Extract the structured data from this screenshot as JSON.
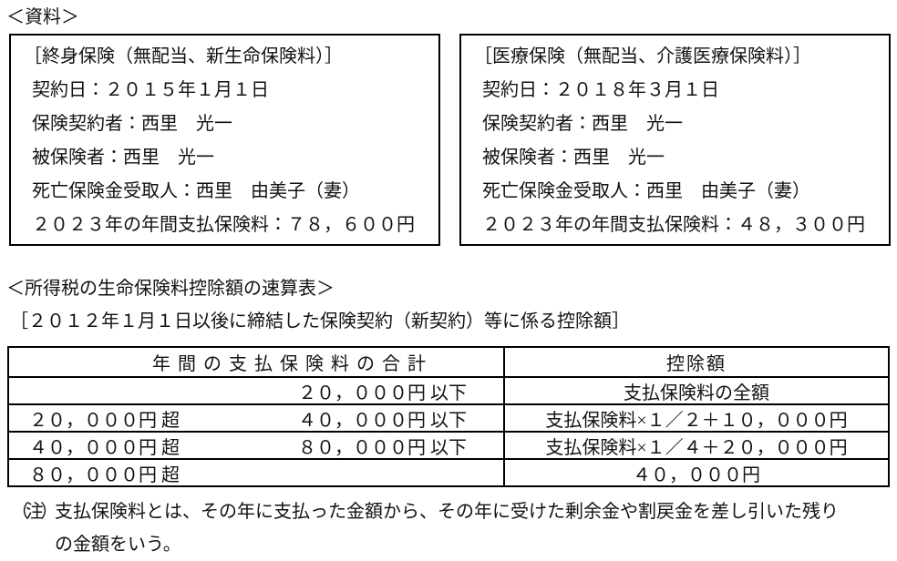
{
  "resource_label": "＜資料＞",
  "boxes": [
    {
      "title": "［終身保険（無配当、新生命保険料）］",
      "lines": [
        "契約日：２０１５年１月１日",
        "保険契約者：西里　光一",
        "被保険者：西里　光一",
        "死亡保険金受取人：西里　由美子（妻）",
        "２０２３年の年間支払保険料：７８，６００円"
      ]
    },
    {
      "title": "［医療保険（無配当、介護医療保険料）］",
      "lines": [
        "契約日：２０１８年３月１日",
        "保険契約者：西里　光一",
        "被保険者：西里　光一",
        "死亡保険金受取人：西里　由美子（妻）",
        "２０２３年の年間支払保険料：４８，３００円"
      ]
    }
  ],
  "deduction_section": {
    "heading": "＜所得税の生命保険料控除額の速算表＞",
    "subheading": "［２０１２年１月１日以後に締結した保険契約（新契約）等に係る控除額］",
    "table": {
      "col1_header": "年間の支払保険料の合計",
      "col2_header": "控除額",
      "rows": [
        {
          "range_low": "",
          "range_high": "２０，０００円 以下",
          "deduction": "支払保険料の全額"
        },
        {
          "range_low": "２０，０００円 超",
          "range_high": "４０，０００円 以下",
          "deduction": "支払保険料×１／２＋１０，０００円"
        },
        {
          "range_low": "４０，０００円 超",
          "range_high": "８０，０００円 以下",
          "deduction": "支払保険料×１／４＋２０，０００円"
        },
        {
          "range_low": "８０，０００円 超",
          "range_high": "",
          "deduction": "４０，０００円"
        }
      ]
    },
    "note_label": "（注）",
    "note_line1": "支払保険料とは、その年に支払った金額から、その年に受けた剰余金や割戻金を差し引いた残り",
    "note_line2": "の金額をいう。"
  }
}
